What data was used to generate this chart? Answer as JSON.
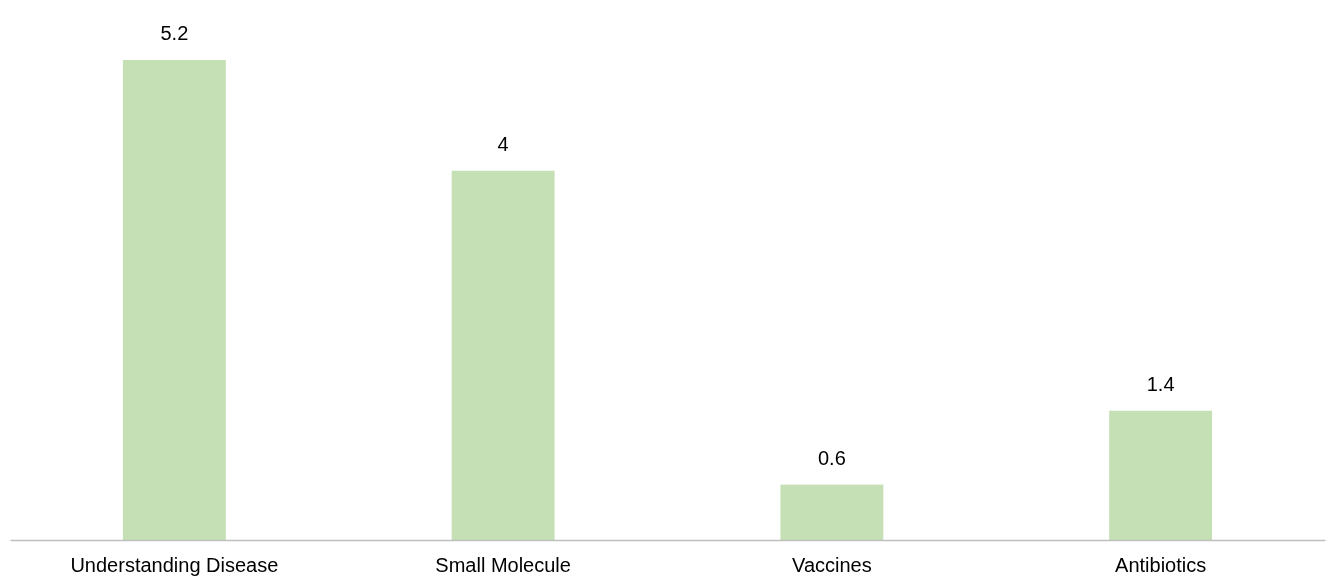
{
  "chart_data": {
    "type": "bar",
    "categories": [
      "Understanding Disease",
      "Small Molecule",
      "Vaccines",
      "Antibiotics"
    ],
    "values": [
      5.2,
      4,
      0.6,
      1.4
    ],
    "color": "#c5e0b4",
    "data_labels": true
  }
}
